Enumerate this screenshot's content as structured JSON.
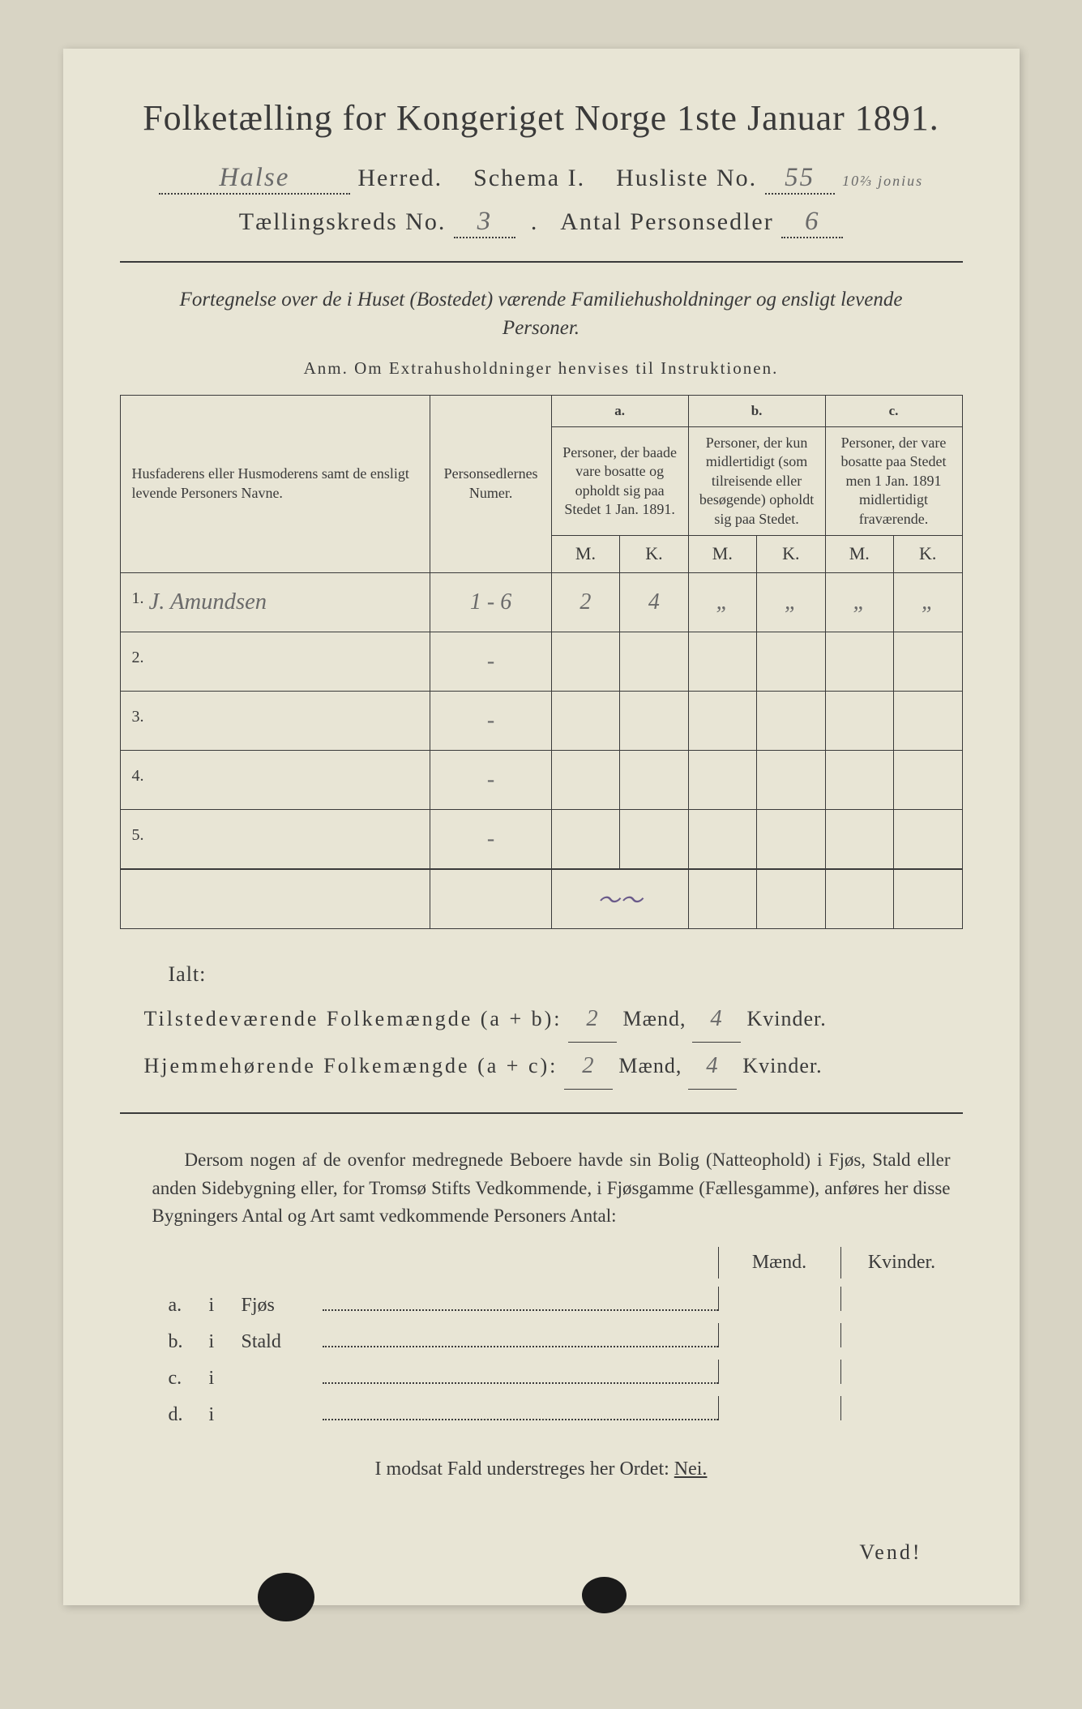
{
  "title": "Folketælling for Kongeriget Norge 1ste Januar 1891.",
  "header": {
    "herred_value": "Halse",
    "herred_label": "Herred.",
    "schema_label": "Schema I.",
    "husliste_label": "Husliste No.",
    "husliste_value": "55",
    "husliste_side_note": "10⅔ jonius",
    "kreds_label": "Tællingskreds No.",
    "kreds_value": "3",
    "antal_label": "Antal Personsedler",
    "antal_value": "6"
  },
  "subtitle": "Fortegnelse over de i Huset (Bostedet) værende Familiehusholdninger og ensligt levende Personer.",
  "anm": "Anm. Om Extrahusholdninger henvises til Instruktionen.",
  "table": {
    "col_name": "Husfaderens eller Husmoderens samt de ensligt levende Personers Navne.",
    "col_num": "Personsedlernes Numer.",
    "col_a_top": "a.",
    "col_a": "Personer, der baade vare bosatte og opholdt sig paa Stedet 1 Jan. 1891.",
    "col_b_top": "b.",
    "col_b": "Personer, der kun midlertidigt (som tilreisende eller besøgende) opholdt sig paa Stedet.",
    "col_c_top": "c.",
    "col_c": "Personer, der vare bosatte paa Stedet men 1 Jan. 1891 midlertidigt fraværende.",
    "m": "M.",
    "k": "K.",
    "rows": [
      {
        "n": "1.",
        "name": "J. Amundsen",
        "num": "1 - 6",
        "am": "2",
        "ak": "4",
        "bm": "„",
        "bk": "„",
        "cm": "„",
        "ck": "„"
      },
      {
        "n": "2.",
        "name": "",
        "num": "-",
        "am": "",
        "ak": "",
        "bm": "",
        "bk": "",
        "cm": "",
        "ck": ""
      },
      {
        "n": "3.",
        "name": "",
        "num": "-",
        "am": "",
        "ak": "",
        "bm": "",
        "bk": "",
        "cm": "",
        "ck": ""
      },
      {
        "n": "4.",
        "name": "",
        "num": "-",
        "am": "",
        "ak": "",
        "bm": "",
        "bk": "",
        "cm": "",
        "ck": ""
      },
      {
        "n": "5.",
        "name": "",
        "num": "-",
        "am": "",
        "ak": "",
        "bm": "",
        "bk": "",
        "cm": "",
        "ck": ""
      }
    ],
    "squiggle_row": "～～"
  },
  "summary": {
    "ialt": "Ialt:",
    "line1_label": "Tilstedeværende Folkemængde (a + b):",
    "line2_label": "Hjemmehørende Folkemængde (a + c):",
    "maend": "Mænd,",
    "kvinder": "Kvinder.",
    "v1m": "2",
    "v1k": "4",
    "v2m": "2",
    "v2k": "4"
  },
  "paragraph": "Dersom nogen af de ovenfor medregnede Beboere havde sin Bolig (Natteophold) i Fjøs, Stald eller anden Sidebygning eller, for Tromsø Stifts Vedkommende, i Fjøsgamme (Fællesgamme), anføres her disse Bygningers Antal og Art samt vedkommende Personers Antal:",
  "bldg": {
    "maend": "Mænd.",
    "kvinder": "Kvinder.",
    "rows": [
      {
        "l": "a.",
        "i": "i",
        "n": "Fjøs"
      },
      {
        "l": "b.",
        "i": "i",
        "n": "Stald"
      },
      {
        "l": "c.",
        "i": "i",
        "n": ""
      },
      {
        "l": "d.",
        "i": "i",
        "n": ""
      }
    ]
  },
  "closing_pre": "I modsat Fald understreges her Ordet: ",
  "closing_nei": "Nei.",
  "vend": "Vend!",
  "colors": {
    "page_bg": "#e8e5d5",
    "outer_bg": "#d8d4c4",
    "text": "#3a3a3a",
    "handwriting": "#6a6a6a"
  }
}
